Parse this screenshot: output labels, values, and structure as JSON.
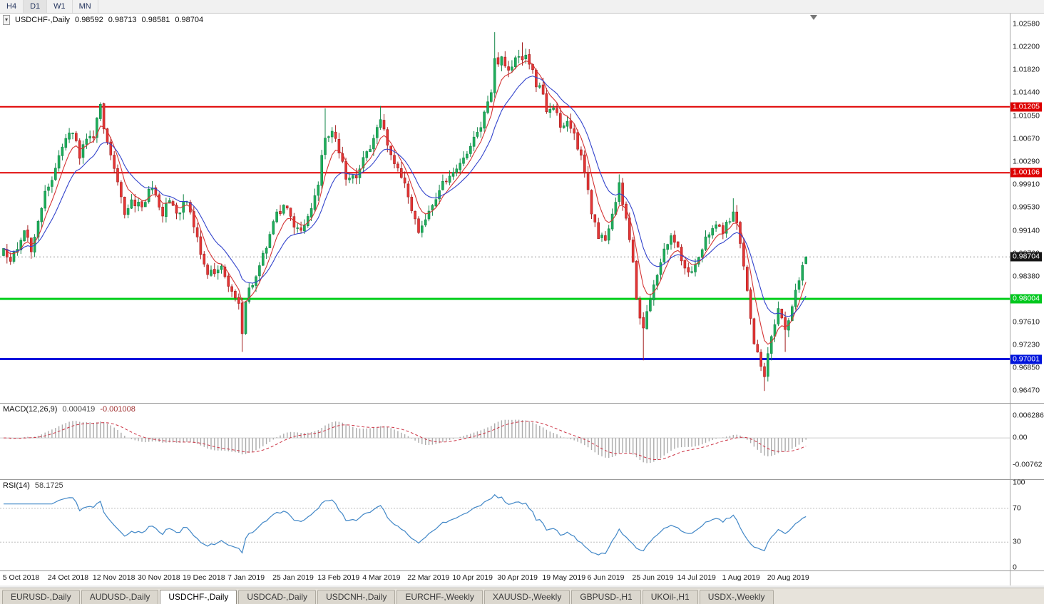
{
  "toolbar": {
    "selected": "D1",
    "timeframes": [
      {
        "label": "H4"
      },
      {
        "label": "D1"
      },
      {
        "label": "W1"
      },
      {
        "label": "MN"
      }
    ]
  },
  "quote": {
    "symbol_label": "USDCHF-,Daily",
    "open": "0.98592",
    "high": "0.98713",
    "low": "0.98581",
    "close": "0.98704"
  },
  "indicators": {
    "macd": {
      "label": "MACD(12,26,9)",
      "value_main": "0.000419",
      "value_signal": "-0.001008",
      "axis": [
        {
          "text": "0.006286",
          "value": 0.006286
        },
        {
          "text": "0.00",
          "value": 0
        },
        {
          "text": "-0.00762",
          "value": -0.00762
        }
      ]
    },
    "rsi": {
      "label": "RSI(14)",
      "value": "58.1725",
      "axis": [
        {
          "text": "100",
          "value": 100
        },
        {
          "text": "70",
          "value": 70
        },
        {
          "text": "30",
          "value": 30
        },
        {
          "text": "0",
          "value": 0
        }
      ],
      "levels": [
        70,
        30
      ]
    }
  },
  "price_axis": {
    "ticks": [
      "1.02580",
      "1.02200",
      "1.01820",
      "1.01440",
      "1.01050",
      "1.00670",
      "1.00290",
      "0.99910",
      "0.99530",
      "0.99140",
      "0.98760",
      "0.98380",
      "0.97610",
      "0.97230",
      "0.96850",
      "0.96470"
    ],
    "badges": [
      {
        "text": "1.01205",
        "bg": "#dd0000"
      },
      {
        "text": "1.00106",
        "bg": "#dd0000"
      },
      {
        "text": "0.98704",
        "bg": "#161616"
      },
      {
        "text": "0.98004",
        "bg": "#00c81e"
      },
      {
        "text": "0.97001",
        "bg": "#0014dc"
      }
    ]
  },
  "dates": [
    "5 Oct 2018",
    "24 Oct 2018",
    "12 Nov 2018",
    "30 Nov 2018",
    "19 Dec 2018",
    "7 Jan 2019",
    "25 Jan 2019",
    "13 Feb 2019",
    "4 Mar 2019",
    "22 Mar 2019",
    "10 Apr 2019",
    "30 Apr 2019",
    "19 May 2019",
    "6 Jun 2019",
    "25 Jun 2019",
    "14 Jul 2019",
    "1 Aug 2019",
    "20 Aug 2019"
  ],
  "tabs": {
    "active_index": 2,
    "items": [
      {
        "label": "EURUSD-,Daily"
      },
      {
        "label": "AUDUSD-,Daily"
      },
      {
        "label": "USDCHF-,Daily"
      },
      {
        "label": "USDCAD-,Daily"
      },
      {
        "label": "USDCNH-,Daily"
      },
      {
        "label": "EURCHF-,Weekly"
      },
      {
        "label": "XAUUSD-,Weekly"
      },
      {
        "label": "GBPUSD-,H1"
      },
      {
        "label": "UKOil-,H1"
      },
      {
        "label": "USDX-,Weekly"
      }
    ]
  },
  "chart_data": {
    "type": "candlestick",
    "symbol": "USDCHF",
    "timeframe": "Daily",
    "candle_count": 233,
    "date_indices": [
      1,
      14,
      27,
      40,
      53,
      66,
      79,
      92,
      105,
      118,
      131,
      144,
      157,
      170,
      183,
      196,
      209,
      222
    ],
    "price_scale": {
      "max": 1.0276,
      "min": 0.9627
    },
    "macd_scale": {
      "max": 0.0098,
      "min": -0.0118
    },
    "last_candle": {
      "open": 0.98592,
      "high": 0.98713,
      "low": 0.98581,
      "close": 0.98704
    },
    "hlines": [
      {
        "value": 1.01205,
        "color": "#e00000",
        "width": 2
      },
      {
        "value": 1.00106,
        "color": "#e00000",
        "width": 2
      },
      {
        "value": 0.98004,
        "color": "#00ce1c",
        "width": 3
      },
      {
        "value": 0.97001,
        "color": "#0014dc",
        "width": 3
      }
    ],
    "close_anchors": [
      [
        0,
        0.989
      ],
      [
        2,
        0.9862
      ],
      [
        4,
        0.9885
      ],
      [
        6,
        0.9915
      ],
      [
        8,
        0.988
      ],
      [
        10,
        0.993
      ],
      [
        12,
        0.9975
      ],
      [
        14,
        1.0005
      ],
      [
        16,
        1.0035
      ],
      [
        18,
        1.0068
      ],
      [
        20,
        1.008
      ],
      [
        22,
        1.004
      ],
      [
        24,
        1.0068
      ],
      [
        26,
        1.0075
      ],
      [
        28,
        1.0118
      ],
      [
        29,
        1.0085
      ],
      [
        31,
        1.004
      ],
      [
        33,
        0.999
      ],
      [
        35,
        0.9945
      ],
      [
        37,
        0.9965
      ],
      [
        40,
        0.995
      ],
      [
        42,
        0.9985
      ],
      [
        44,
        0.9975
      ],
      [
        46,
        0.9945
      ],
      [
        48,
        0.9965
      ],
      [
        50,
        0.994
      ],
      [
        53,
        0.9968
      ],
      [
        55,
        0.9915
      ],
      [
        57,
        0.988
      ],
      [
        59,
        0.9845
      ],
      [
        61,
        0.9838
      ],
      [
        63,
        0.9858
      ],
      [
        65,
        0.9825
      ],
      [
        67,
        0.98
      ],
      [
        68,
        0.9788
      ],
      [
        69,
        0.9745
      ],
      [
        70,
        0.98
      ],
      [
        72,
        0.9825
      ],
      [
        74,
        0.9855
      ],
      [
        76,
        0.989
      ],
      [
        78,
        0.9925
      ],
      [
        79,
        0.9945
      ],
      [
        81,
        0.995
      ],
      [
        83,
        0.994
      ],
      [
        85,
        0.9912
      ],
      [
        87,
        0.992
      ],
      [
        89,
        0.9945
      ],
      [
        91,
        0.999
      ],
      [
        92,
        1.004
      ],
      [
        93,
        1.0068
      ],
      [
        95,
        1.0085
      ],
      [
        97,
        1.005
      ],
      [
        99,
        1.0005
      ],
      [
        101,
        1.0
      ],
      [
        103,
        1.0015
      ],
      [
        105,
        1.0048
      ],
      [
        107,
        1.0065
      ],
      [
        109,
        1.01
      ],
      [
        111,
        1.0055
      ],
      [
        113,
        1.0028
      ],
      [
        115,
        1.0008
      ],
      [
        117,
        0.9975
      ],
      [
        118,
        0.9952
      ],
      [
        120,
        0.9912
      ],
      [
        122,
        0.9928
      ],
      [
        124,
        0.9955
      ],
      [
        126,
        0.9985
      ],
      [
        128,
        1.0
      ],
      [
        131,
        1.0012
      ],
      [
        133,
        1.0035
      ],
      [
        135,
        1.0058
      ],
      [
        137,
        1.0075
      ],
      [
        139,
        1.0105
      ],
      [
        141,
        1.015
      ],
      [
        142,
        1.0205
      ],
      [
        143,
        1.0185
      ],
      [
        144,
        1.02
      ],
      [
        146,
        1.0188
      ],
      [
        148,
        1.02
      ],
      [
        150,
        1.0205
      ],
      [
        152,
        1.0195
      ],
      [
        154,
        1.016
      ],
      [
        156,
        1.0145
      ],
      [
        157,
        1.0112
      ],
      [
        159,
        1.0125
      ],
      [
        161,
        1.0088
      ],
      [
        163,
        1.0102
      ],
      [
        165,
        1.0072
      ],
      [
        167,
        1.0038
      ],
      [
        169,
        0.9985
      ],
      [
        170,
        0.9945
      ],
      [
        172,
        0.9905
      ],
      [
        174,
        0.9898
      ],
      [
        176,
        0.9935
      ],
      [
        178,
        0.9988
      ],
      [
        180,
        0.9935
      ],
      [
        182,
        0.9862
      ],
      [
        183,
        0.9795
      ],
      [
        185,
        0.9748
      ],
      [
        187,
        0.9802
      ],
      [
        189,
        0.9845
      ],
      [
        191,
        0.9878
      ],
      [
        193,
        0.9905
      ],
      [
        195,
        0.9882
      ],
      [
        196,
        0.9865
      ],
      [
        198,
        0.9845
      ],
      [
        200,
        0.9858
      ],
      [
        202,
        0.9888
      ],
      [
        204,
        0.9908
      ],
      [
        206,
        0.9928
      ],
      [
        208,
        0.9912
      ],
      [
        210,
        0.9935
      ],
      [
        211,
        0.9952
      ],
      [
        213,
        0.9895
      ],
      [
        215,
        0.9808
      ],
      [
        217,
        0.9728
      ],
      [
        219,
        0.9692
      ],
      [
        220,
        0.9668
      ],
      [
        221,
        0.9705
      ],
      [
        222,
        0.9742
      ],
      [
        224,
        0.9782
      ],
      [
        226,
        0.9748
      ],
      [
        228,
        0.9792
      ],
      [
        230,
        0.9832
      ],
      [
        232,
        0.987
      ]
    ],
    "spikes": [
      {
        "i": 28,
        "high": 1.0128
      },
      {
        "i": 69,
        "low": 0.9712
      },
      {
        "i": 93,
        "high": 1.0118
      },
      {
        "i": 109,
        "high": 1.0122
      },
      {
        "i": 142,
        "high": 1.0245
      },
      {
        "i": 150,
        "high": 1.0228
      },
      {
        "i": 178,
        "high": 1.0008
      },
      {
        "i": 185,
        "low": 0.9698
      },
      {
        "i": 211,
        "high": 0.9968
      },
      {
        "i": 220,
        "low": 0.9647
      },
      {
        "i": 226,
        "low": 0.9712
      }
    ],
    "ma_periods": {
      "red": 6,
      "blue": 14
    },
    "colors": {
      "up_fill": "#1fae5a",
      "up_border": "#128648",
      "down_fill": "#e63535",
      "down_border": "#a31f1f",
      "ma_red": "#d43434",
      "ma_blue": "#3344cc",
      "macd_hist": "#ababab",
      "macd_signal": "#cc3344",
      "rsi_line": "#4187c7",
      "current_price_line": "#9a9a9a"
    }
  }
}
